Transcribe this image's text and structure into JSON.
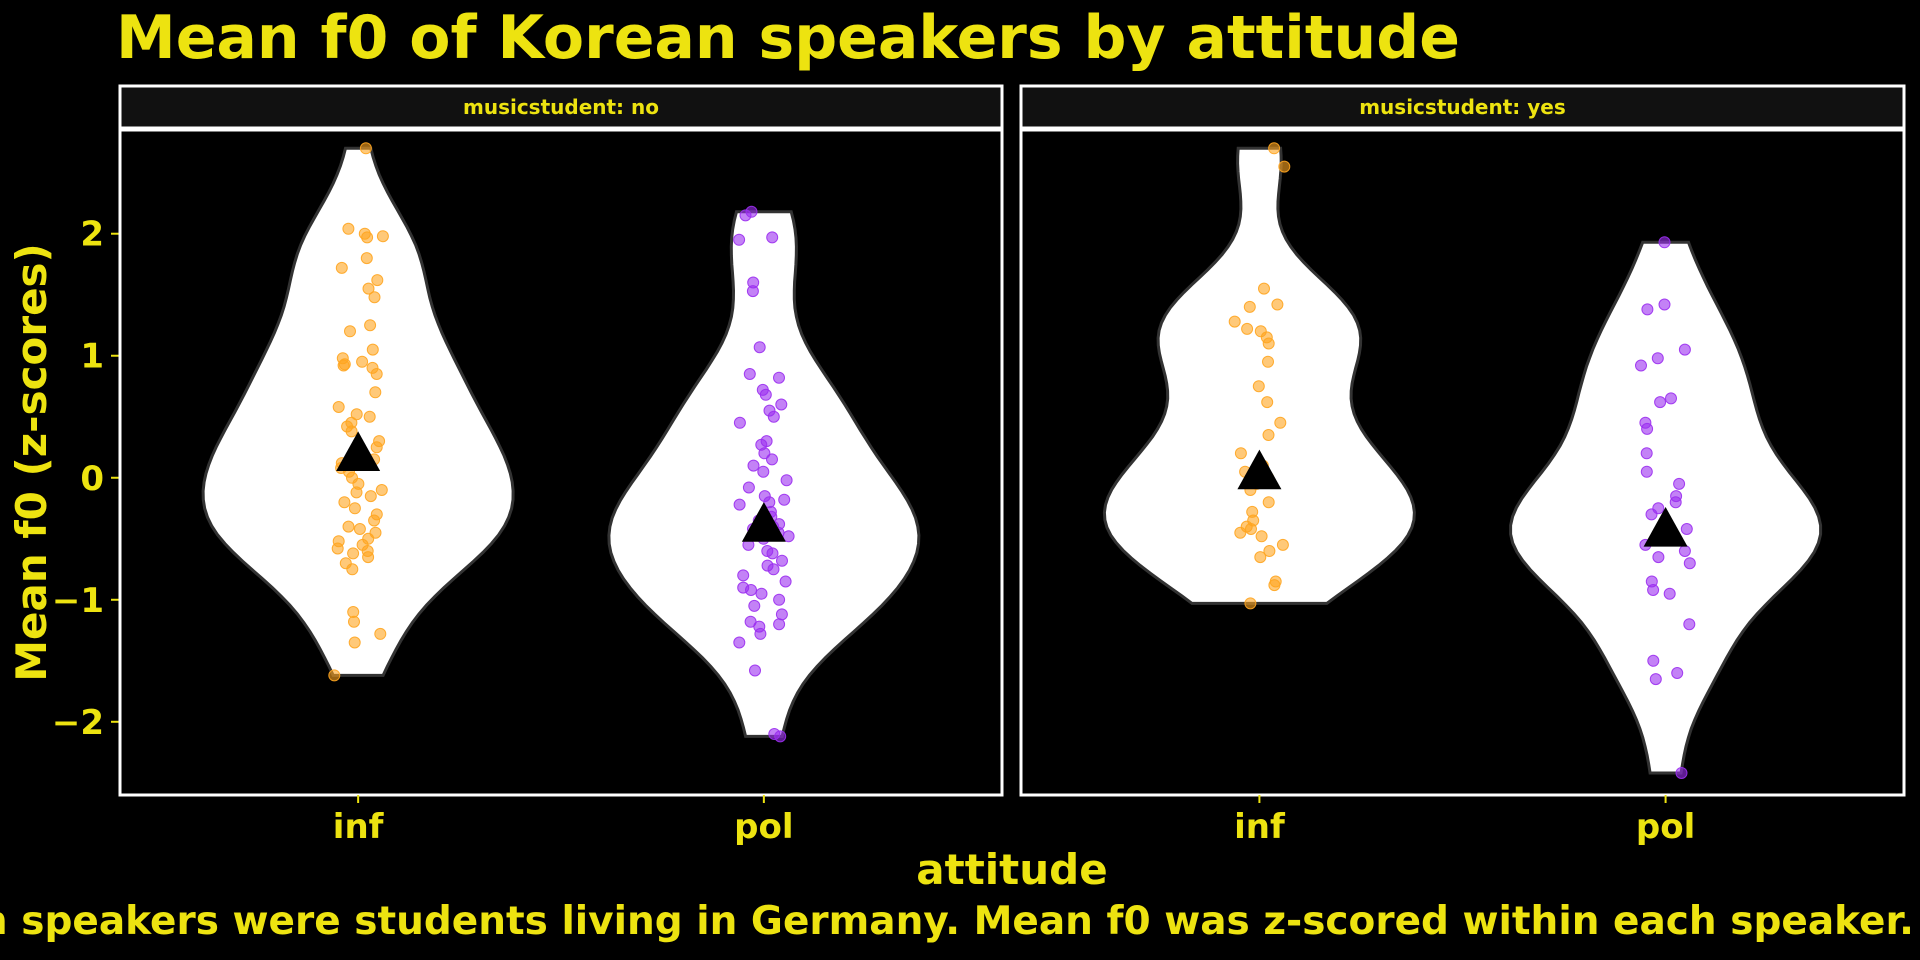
{
  "title": "Mean f0 of Korean speakers by attitude",
  "caption": "n speakers were students living in Germany. Mean f0 was z-scored within each speaker.",
  "chart_data": {
    "type": "violin",
    "title": "Mean f0 of Korean speakers by attitude",
    "xlabel": "attitude",
    "ylabel": "Mean f0 (z-scores)",
    "ylim": [
      -2.6,
      2.85
    ],
    "yticks": [
      -2,
      -1,
      0,
      1,
      2
    ],
    "categories": [
      "inf",
      "pol"
    ],
    "facet_var": "musicstudent",
    "colors": {
      "inf": "#ffa520",
      "pol": "#9b2ff0",
      "violin_fill": "#ffffff",
      "violin_stroke": "#333333",
      "mean_marker": "#000000"
    },
    "panels": [
      {
        "strip": "musicstudent: no",
        "groups": [
          {
            "category": "inf",
            "mean": 0.2,
            "range": [
              -1.62,
              2.7
            ],
            "points": [
              2.7,
              2.04,
              2.0,
              1.98,
              1.97,
              1.8,
              1.72,
              1.62,
              1.55,
              1.48,
              1.25,
              1.2,
              1.05,
              0.98,
              0.95,
              0.93,
              0.92,
              0.9,
              0.85,
              0.7,
              0.58,
              0.52,
              0.5,
              0.45,
              0.42,
              0.38,
              0.3,
              0.25,
              0.2,
              0.18,
              0.15,
              0.12,
              0.08,
              0.05,
              0.0,
              -0.05,
              -0.1,
              -0.12,
              -0.15,
              -0.2,
              -0.25,
              -0.3,
              -0.35,
              -0.4,
              -0.42,
              -0.45,
              -0.5,
              -0.52,
              -0.55,
              -0.58,
              -0.6,
              -0.62,
              -0.65,
              -0.7,
              -0.75,
              -1.1,
              -1.18,
              -1.28,
              -1.35,
              -1.62
            ]
          },
          {
            "category": "pol",
            "mean": -0.38,
            "range": [
              -2.12,
              2.18
            ],
            "points": [
              2.18,
              2.15,
              1.97,
              1.95,
              1.6,
              1.53,
              1.07,
              0.85,
              0.82,
              0.72,
              0.68,
              0.6,
              0.55,
              0.5,
              0.45,
              0.3,
              0.27,
              0.2,
              0.15,
              0.1,
              0.05,
              -0.02,
              -0.08,
              -0.15,
              -0.18,
              -0.2,
              -0.22,
              -0.28,
              -0.32,
              -0.35,
              -0.38,
              -0.4,
              -0.42,
              -0.45,
              -0.48,
              -0.5,
              -0.55,
              -0.6,
              -0.62,
              -0.68,
              -0.72,
              -0.75,
              -0.8,
              -0.85,
              -0.9,
              -0.92,
              -0.95,
              -1.0,
              -1.05,
              -1.12,
              -1.18,
              -1.2,
              -1.22,
              -1.28,
              -1.35,
              -1.58,
              -2.1,
              -2.12
            ]
          }
        ]
      },
      {
        "strip": "musicstudent: yes",
        "groups": [
          {
            "category": "inf",
            "mean": 0.05,
            "range": [
              -1.03,
              2.7
            ],
            "points": [
              2.7,
              2.55,
              1.55,
              1.42,
              1.4,
              1.28,
              1.22,
              1.2,
              1.15,
              1.1,
              0.95,
              0.75,
              0.62,
              0.45,
              0.35,
              0.2,
              0.1,
              0.05,
              0.0,
              -0.05,
              -0.1,
              -0.2,
              -0.28,
              -0.35,
              -0.4,
              -0.42,
              -0.45,
              -0.48,
              -0.55,
              -0.6,
              -0.65,
              -0.85,
              -0.88,
              -1.03
            ]
          },
          {
            "category": "pol",
            "mean": -0.42,
            "range": [
              -2.42,
              1.93
            ],
            "points": [
              1.93,
              1.42,
              1.38,
              1.05,
              0.98,
              0.92,
              0.65,
              0.62,
              0.45,
              0.4,
              0.2,
              0.05,
              -0.05,
              -0.15,
              -0.2,
              -0.25,
              -0.3,
              -0.38,
              -0.42,
              -0.5,
              -0.55,
              -0.6,
              -0.65,
              -0.7,
              -0.85,
              -0.92,
              -0.95,
              -1.2,
              -1.5,
              -1.6,
              -1.65,
              -2.42
            ]
          }
        ]
      }
    ]
  }
}
